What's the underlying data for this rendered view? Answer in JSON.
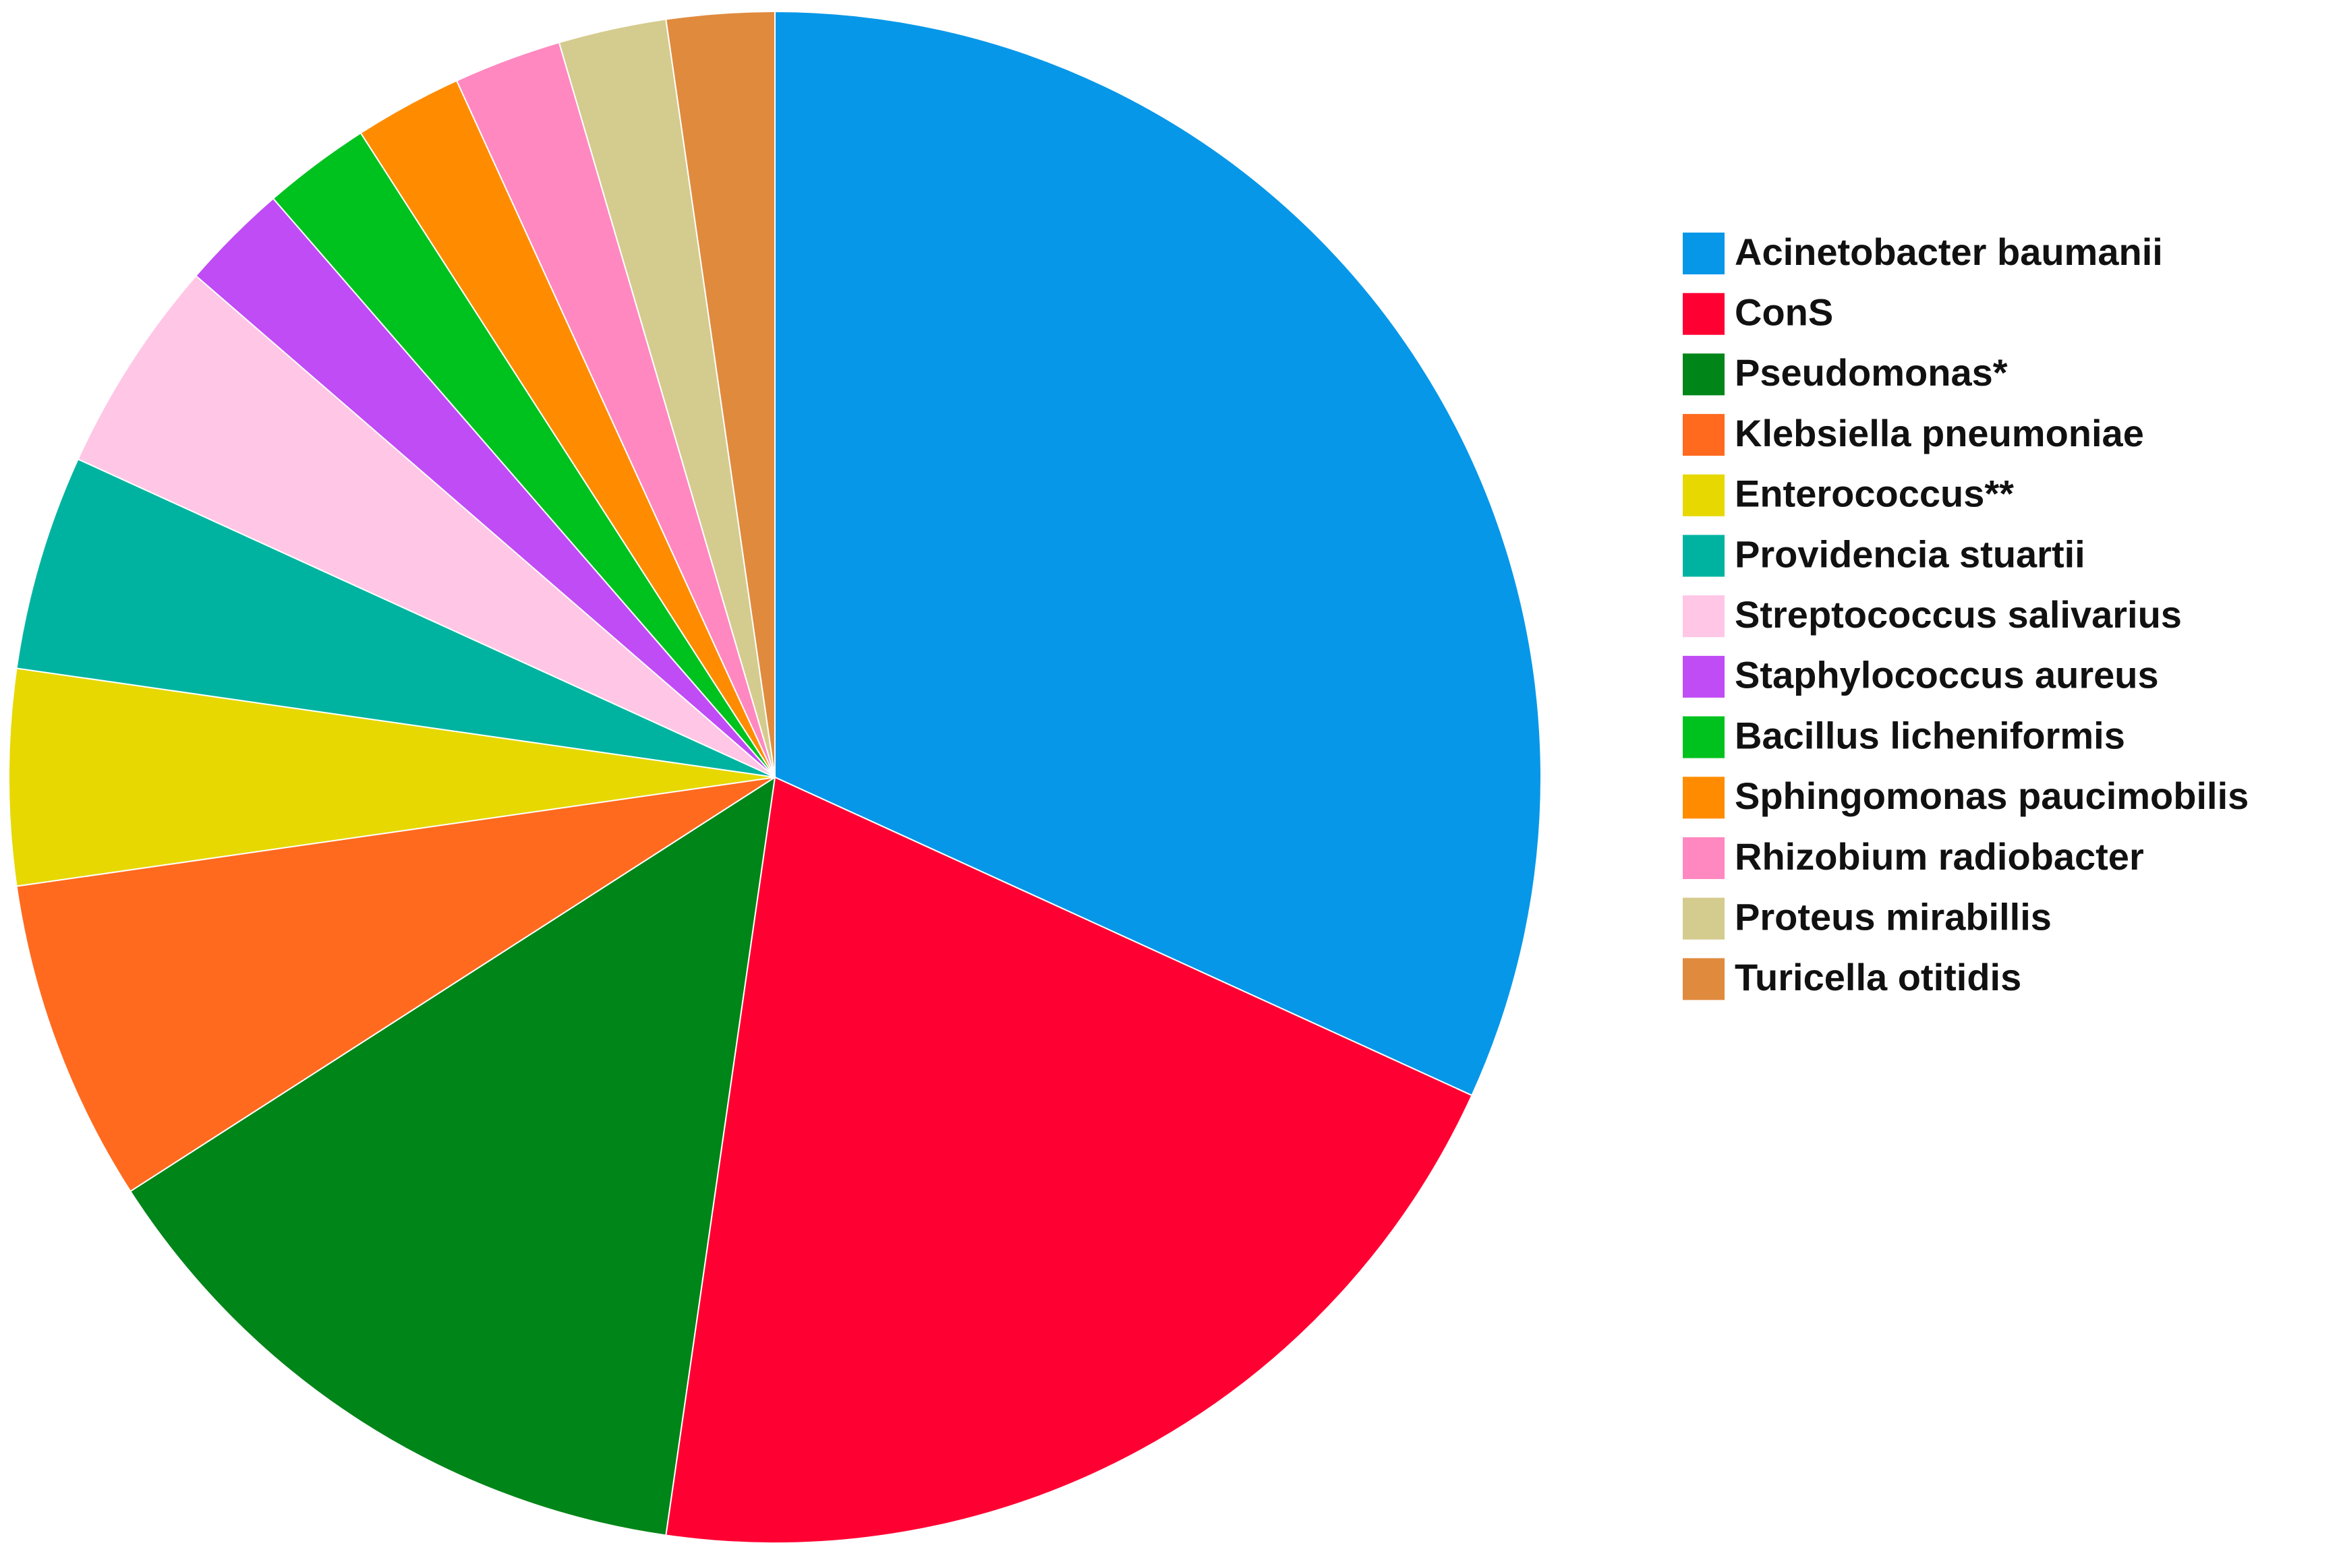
{
  "chart_data": {
    "type": "pie",
    "categories": [
      "Acinetobacter baumanii",
      "ConS",
      "Pseudomonas*",
      "Klebsiella pneumoniae",
      "Enterococcus**",
      "Providencia stuartii",
      "Streptococcus salivarius",
      "Staphylococcus aureus",
      "Bacillus licheniformis",
      "Sphingomonas paucimobilis",
      "Rhizobium radiobacter",
      "Proteus mirabillis",
      "Turicella otitidis"
    ],
    "values": [
      14,
      9,
      6,
      3,
      2,
      2,
      2,
      1,
      1,
      1,
      1,
      1,
      1
    ],
    "colors": [
      "#0797e8",
      "#ff0033",
      "#008518",
      "#ff6a1f",
      "#e6d800",
      "#00b3a0",
      "#ffc6e6",
      "#c04cf5",
      "#00c21f",
      "#ff8c00",
      "#ff88c0",
      "#d4cb8e",
      "#e08a3e"
    ],
    "legend": "right"
  }
}
